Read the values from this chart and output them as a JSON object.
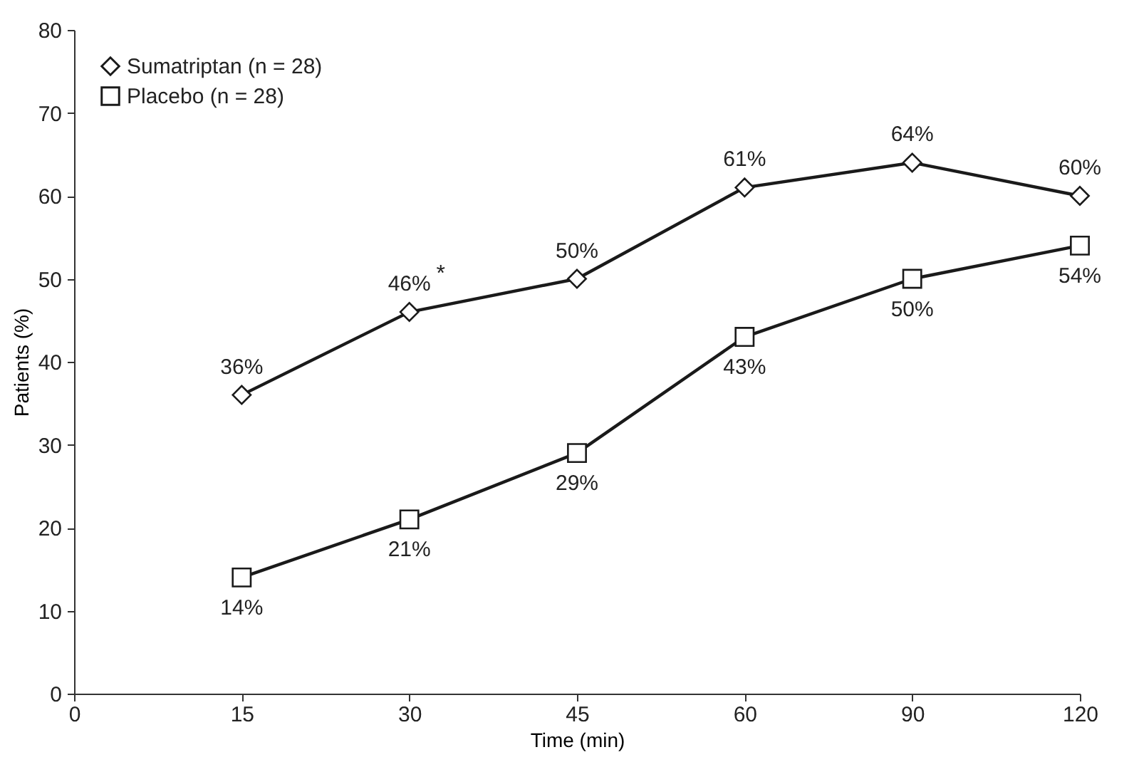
{
  "chart_data": {
    "type": "line",
    "xlabel": "Time (min)",
    "ylabel": "Patients (%)",
    "categories": [
      "0",
      "15",
      "30",
      "45",
      "60",
      "90",
      "120"
    ],
    "series": [
      {
        "name": "Sumatriptan (n = 28)",
        "color": "#1a1a1a",
        "marker": "diamond",
        "values": [
          null,
          36,
          46,
          50,
          61,
          64,
          60
        ],
        "value_labels": [
          null,
          "36%",
          "46%",
          "50%",
          "61%",
          "64%",
          "60%"
        ]
      },
      {
        "name": "Placebo (n = 28)",
        "color": "#1a1a1a",
        "marker": "square",
        "values": [
          null,
          14,
          21,
          29,
          43,
          50,
          54
        ],
        "value_labels": [
          null,
          "14%",
          "21%",
          "29%",
          "43%",
          "50%",
          "54%"
        ]
      }
    ],
    "annotations": [
      {
        "text": "*",
        "x": "30",
        "y": 46
      }
    ],
    "ylim": [
      0,
      80
    ],
    "yticks": [
      0,
      10,
      20,
      30,
      40,
      50,
      60,
      70,
      80
    ],
    "grid": false,
    "legend": "top left",
    "line_style": "solid"
  }
}
